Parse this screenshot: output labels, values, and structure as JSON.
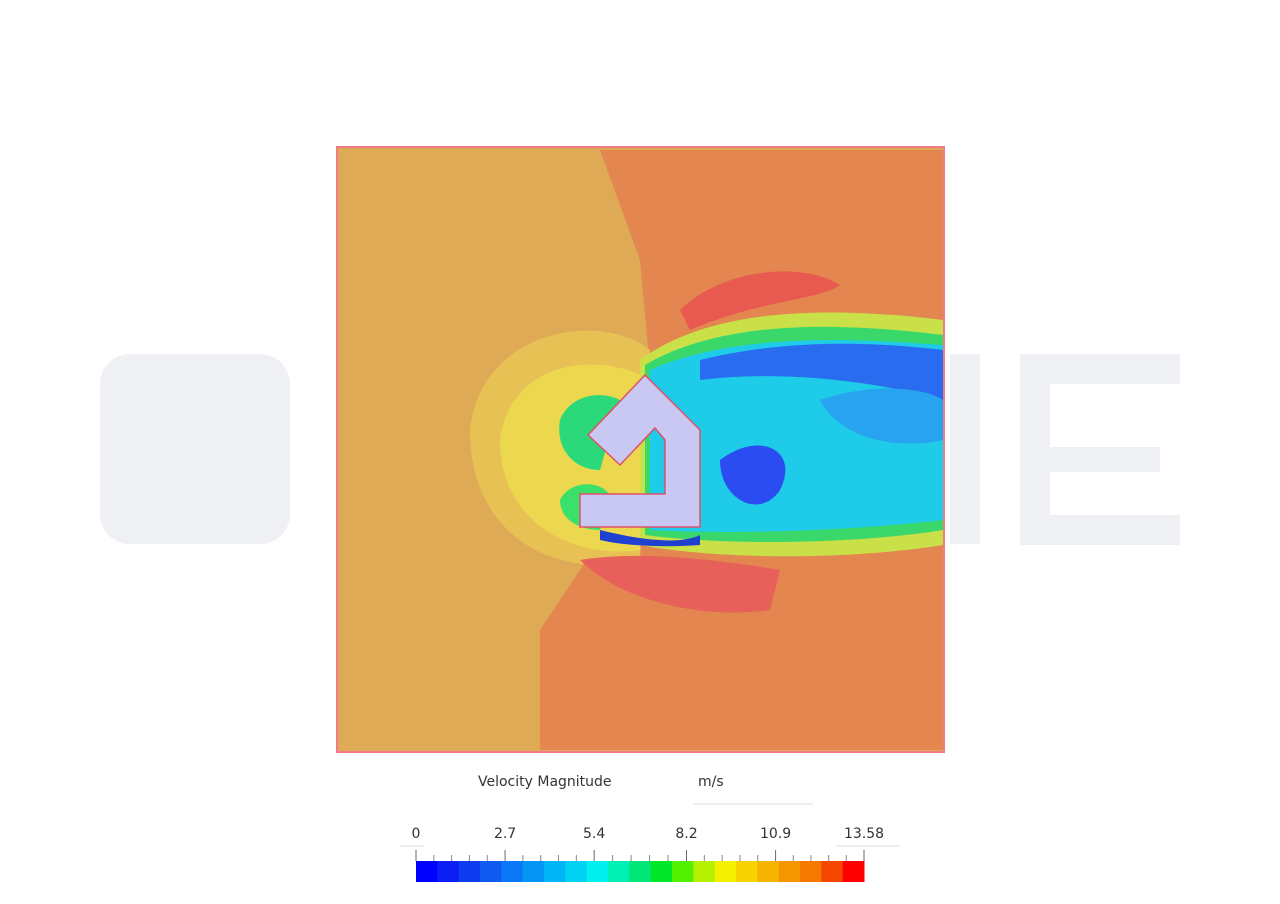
{
  "legend": {
    "title": "Velocity Magnitude",
    "unit": "m/s",
    "range": [
      0,
      13.58
    ],
    "ticks": [
      0,
      2.7,
      5.4,
      8.2,
      10.9,
      13.58
    ],
    "colors": [
      "#0000ff",
      "#0a1ef5",
      "#0f3cf0",
      "#0f5af0",
      "#0a78f5",
      "#0596f5",
      "#00b4f5",
      "#00d2f5",
      "#00f0f0",
      "#00f0b4",
      "#00e678",
      "#00e628",
      "#50f000",
      "#b4f000",
      "#f5f000",
      "#f5d200",
      "#f5b400",
      "#f59600",
      "#f57800",
      "#f54600",
      "#ff0000"
    ]
  }
}
